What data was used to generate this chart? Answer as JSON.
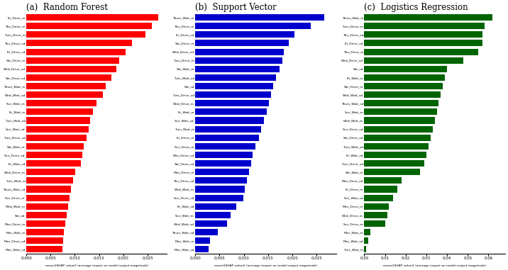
{
  "panels": [
    {
      "title": "(a)  Random Forest",
      "color": "#FF0000",
      "xlim": [
        0,
        0.029
      ],
      "xticks": [
        0.0,
        0.005,
        0.01,
        0.015,
        0.02,
        0.025
      ],
      "xtick_labels": [
        "0.000",
        "0.005",
        "0.010",
        "0.015",
        "0.020",
        "0.025"
      ],
      "xlabel": "mean(|SHAP value|) (average impact on model output magnitude)",
      "features": [
        "Fri_Drive_m",
        "Thu_Drive_m",
        "Tues_Drive_m",
        "Thu_Drive_sd",
        "Fri_Drive_sd",
        "Sat_Drive_m",
        "Wed_Drive_sd",
        "Sat_Drive_sd",
        "Thurs_Wait_m",
        "Wed_Wait_sd",
        "Sun_Wait_m",
        "Fri_Wait_m",
        "Tues_Wait_sd",
        "Sun_Wait_sd",
        "Tues_Drive_sd",
        "Sat_Wait_m",
        "Sun_Drive_sd",
        "Fri_Wait_sd",
        "Wed_Drive_m",
        "Tues_Wait_m",
        "Thurs_Wait_sd",
        "Sun_Drive_m",
        "Wed_Wait_m",
        "Sat_sd",
        "Mon_Drive_m",
        "Mon_Wait_m",
        "Mon_Drive_sd",
        "Mon_Wait_sd"
      ],
      "values": [
        0.0272,
        0.0258,
        0.0245,
        0.0218,
        0.0205,
        0.0192,
        0.0185,
        0.0175,
        0.0163,
        0.0158,
        0.0145,
        0.0138,
        0.0132,
        0.0128,
        0.0124,
        0.0119,
        0.0115,
        0.0112,
        0.0101,
        0.0096,
        0.0092,
        0.0089,
        0.0086,
        0.0083,
        0.008,
        0.0078,
        0.0076,
        0.0074
      ]
    },
    {
      "title": "(b)  Support Vector",
      "color": "#0000CC",
      "xlim": [
        0,
        0.029
      ],
      "xticks": [
        0.0,
        0.005,
        0.01,
        0.015,
        0.02,
        0.025
      ],
      "xtick_labels": [
        "0.000",
        "0.005",
        "0.010",
        "0.015",
        "0.020",
        "0.025"
      ],
      "xlabel": "mean(|SHAP value|) (average impact on model output magnitude)",
      "features": [
        "Thurs_Wait_m",
        "Thu_Drive_m",
        "Fri_Drive_sd",
        "Sat_Drive_m",
        "Wed_Drive_sd",
        "Tues_Drive_m",
        "Sat_Wait_m",
        "Tues_Wait_sd",
        "Sat_sd",
        "Tues_Drive_sd",
        "Wed_Drive_m",
        "Fri_Wait_m",
        "Sun_Wait_sd",
        "Tues_Wait_m",
        "Fri_Drive_m",
        "Sun_Drive_m",
        "Mon_Drive_sd",
        "Sat_Drive_sd",
        "Mon_Drive_m",
        "Thu_Drive_sd",
        "Wed_Wait_m",
        "Sun_Drive_sd",
        "Fri_Wait_sd",
        "Sun_Wait_m",
        "Wed_Wait_sd",
        "Thurs_Wait_sd",
        "Mon_Wait_m",
        "Mon_Wait_sd"
      ],
      "values": [
        0.0265,
        0.0238,
        0.0205,
        0.0192,
        0.0182,
        0.0179,
        0.0173,
        0.0166,
        0.0161,
        0.0156,
        0.0151,
        0.0147,
        0.0141,
        0.0135,
        0.0131,
        0.0124,
        0.0118,
        0.0115,
        0.0111,
        0.0106,
        0.0102,
        0.0099,
        0.0084,
        0.0073,
        0.0065,
        0.0046,
        0.0031,
        0.0027
      ]
    },
    {
      "title": "(c)  Logistics Regression",
      "color": "#006400",
      "xlim": [
        0,
        0.068
      ],
      "xticks": [
        0.0,
        0.01,
        0.02,
        0.03,
        0.04,
        0.05,
        0.06
      ],
      "xtick_labels": [
        "0.00",
        "0.01",
        "0.02",
        "0.03",
        "0.04",
        "0.05",
        "0.06"
      ],
      "xlabel": "mean(|SHAP value|) (average impact on model output magnitude)",
      "features": [
        "Thurs_Wait_m",
        "Tues_Drive_m",
        "Thu_Drive_sd",
        "Fri_Drive_sd",
        "Thu_Drive_m",
        "Wed_Drive_sd",
        "Sat_sd",
        "Fri_Wait_m",
        "Sat_Drive_m",
        "Wed_Wait_sd",
        "Thurs_Wait_sd",
        "Sun_Wait_m",
        "Wed_Wait_m",
        "Sun_Drive_sd",
        "Sat_Drive_sd",
        "Tues_Wait_sd",
        "Fri_Wait_sd",
        "Tues_Drive_sd",
        "Sat_Wait_m",
        "Mon_Drive_sd",
        "Fri_Drive_m",
        "Sun_Wait_sd",
        "Mon_Drive_m",
        "Wed_Drive_m",
        "Sun_Drive_m",
        "Mon_Wait_m",
        "Mon_Wait_sd",
        "Tues_Wait_m"
      ],
      "values": [
        0.062,
        0.058,
        0.057,
        0.057,
        0.055,
        0.048,
        0.04,
        0.039,
        0.038,
        0.037,
        0.036,
        0.035,
        0.034,
        0.033,
        0.032,
        0.031,
        0.03,
        0.029,
        0.027,
        0.018,
        0.016,
        0.014,
        0.012,
        0.011,
        0.01,
        0.003,
        0.002,
        0.001
      ]
    }
  ],
  "fig_width": 7.16,
  "fig_height": 3.81,
  "dpi": 100,
  "bar_height": 0.75,
  "label_fontsize": 3.2,
  "title_fontsize": 8.5,
  "tick_fontsize": 4.0,
  "xlabel_fontsize": 3.2
}
